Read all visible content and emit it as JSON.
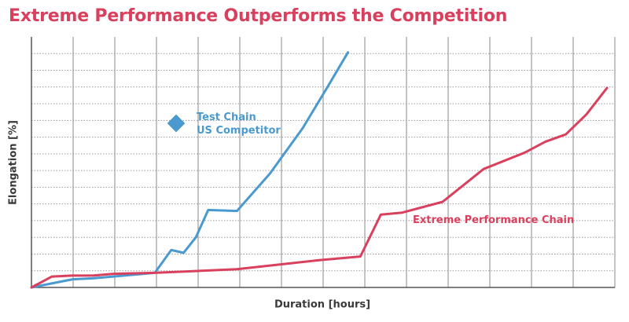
{
  "title": "Extreme Performance Outperforms the Competition",
  "chart_data": {
    "type": "line",
    "title": "Extreme Performance Outperforms the Competition",
    "xlabel": "Duration [hours]",
    "ylabel": "Elongation [%]",
    "grid": true,
    "legend_placement": "inline",
    "series": [
      {
        "name_lines": [
          "Test Chain",
          "US Competitor"
        ],
        "color": "#4a9ad0",
        "x": [
          0,
          1,
          1.5,
          2.5,
          3.0,
          3.4,
          3.7,
          4.0,
          4.3,
          5.0,
          5.8,
          6.6,
          7.2,
          7.7
        ],
        "y": [
          0,
          0.9,
          1.0,
          1.4,
          1.6,
          4.1,
          3.8,
          5.5,
          8.5,
          8.4,
          12.5,
          17.5,
          22.0,
          25.8
        ]
      },
      {
        "name": "Extreme Performance Chain",
        "color": "#d9405e",
        "x": [
          0,
          0.5,
          1.0,
          1.5,
          2.0,
          3.0,
          4.0,
          5.0,
          6.0,
          7.0,
          8.0,
          8.5,
          9.0,
          10.0,
          11.0,
          12.0,
          12.5,
          13.0,
          13.5,
          14.0
        ],
        "y": [
          0,
          1.2,
          1.3,
          1.3,
          1.5,
          1.6,
          1.8,
          2.0,
          2.5,
          3.0,
          3.4,
          8.0,
          8.2,
          9.4,
          13.0,
          14.8,
          16.0,
          16.8,
          19.0,
          21.9
        ]
      }
    ],
    "xlim": [
      0,
      14
    ],
    "ylim": [
      0,
      27.5
    ]
  }
}
